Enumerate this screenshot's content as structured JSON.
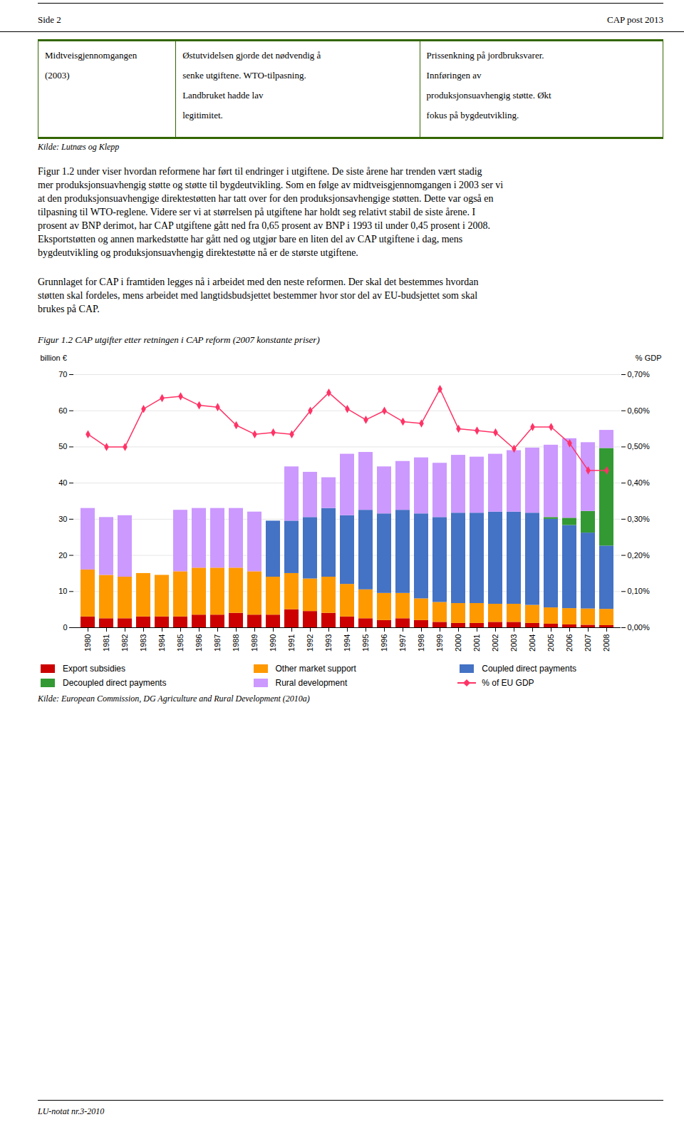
{
  "chart_data": {
    "type": "bar",
    "stacked": true,
    "title": "Figur 1.2 CAP utgifter etter retningen i CAP reform (2007 konstante priser)",
    "ylabel": "billion €",
    "y2label": "% GDP",
    "categories": [
      "1980",
      "1981",
      "1982",
      "1983",
      "1984",
      "1985",
      "1986",
      "1987",
      "1988",
      "1989",
      "1990",
      "1991",
      "1992",
      "1993",
      "1994",
      "1995",
      "1996",
      "1997",
      "1998",
      "1999",
      "2000",
      "2001",
      "2002",
      "2003",
      "2004",
      "2005",
      "2006",
      "2007",
      "2008"
    ],
    "series": [
      {
        "name": "Export subsidies",
        "type": "bar",
        "color": "#CC0000",
        "values": [
          3.0,
          2.5,
          2.5,
          3.0,
          3.0,
          3.0,
          3.5,
          3.5,
          4.0,
          3.5,
          3.5,
          5.0,
          4.5,
          4.0,
          3.0,
          2.5,
          2.0,
          2.5,
          2.0,
          1.5,
          1.2,
          1.2,
          1.5,
          1.5,
          1.2,
          1.0,
          0.8,
          0.7,
          0.6
        ]
      },
      {
        "name": "Other market support",
        "type": "bar",
        "color": "#FF9900",
        "values": [
          13.0,
          12.0,
          11.5,
          12.0,
          11.5,
          12.5,
          13.0,
          13.0,
          12.5,
          12.0,
          10.5,
          10.0,
          9.0,
          10.0,
          9.0,
          8.0,
          7.5,
          7.0,
          6.0,
          5.5,
          5.5,
          5.5,
          5.0,
          5.0,
          5.0,
          4.5,
          4.5,
          4.5,
          4.5
        ]
      },
      {
        "name": "Coupled direct payments",
        "type": "bar",
        "color": "#4472C4",
        "values": [
          0,
          0,
          0,
          0,
          0,
          0,
          0,
          0,
          0,
          0,
          15.5,
          14.5,
          17.0,
          19.0,
          19.0,
          22.0,
          22.0,
          23.0,
          23.5,
          23.5,
          25.0,
          25.0,
          25.5,
          25.5,
          25.5,
          24.5,
          23.0,
          21.0,
          17.5
        ]
      },
      {
        "name": "Decoupled direct payments",
        "type": "bar",
        "color": "#339933",
        "values": [
          0,
          0,
          0,
          0,
          0,
          0,
          0,
          0,
          0,
          0,
          0,
          0,
          0,
          0,
          0,
          0,
          0,
          0,
          0,
          0,
          0,
          0,
          0,
          0,
          0,
          0.5,
          2.0,
          6.0,
          27.0
        ]
      },
      {
        "name": "Rural development",
        "type": "bar",
        "color": "#CC99FF",
        "values": [
          17.0,
          16.0,
          17.0,
          0,
          0,
          17.0,
          16.5,
          16.5,
          16.5,
          16.5,
          0,
          15.0,
          12.5,
          8.5,
          17.0,
          16.0,
          13.0,
          13.5,
          15.5,
          15.0,
          16.0,
          15.5,
          16.0,
          17.0,
          18.0,
          20.0,
          22.0,
          19.0,
          5.0
        ]
      },
      {
        "name": "% of EU GDP",
        "type": "line",
        "axis": "y2",
        "color": "#FF3366",
        "marker": "diamond",
        "values": [
          0.535,
          0.5,
          0.5,
          0.605,
          0.635,
          0.64,
          0.615,
          0.61,
          0.56,
          0.535,
          0.54,
          0.535,
          0.6,
          0.65,
          0.605,
          0.575,
          0.6,
          0.57,
          0.565,
          0.66,
          0.55,
          0.545,
          0.54,
          0.495,
          0.555,
          0.555,
          0.51,
          0.435,
          0.435
        ]
      }
    ],
    "ylim": [
      0,
      70
    ],
    "yticks": [
      0,
      10,
      20,
      30,
      40,
      50,
      60,
      70
    ],
    "y2lim": [
      0.0,
      0.7
    ],
    "y2ticks": [
      {
        "value": 0.0,
        "label": "0,00%"
      },
      {
        "value": 0.1,
        "label": "0,10%"
      },
      {
        "value": 0.2,
        "label": "0,20%"
      },
      {
        "value": 0.3,
        "label": "0,30%"
      },
      {
        "value": 0.4,
        "label": "0,40%"
      },
      {
        "value": 0.5,
        "label": "0,50%"
      },
      {
        "value": 0.6,
        "label": "0,60%"
      },
      {
        "value": 0.7,
        "label": "0,70%"
      }
    ],
    "grid": true,
    "legend": "bottom",
    "annotations": [
      "Kilde: European Commission, DG Agriculture and Rural Development (2010a)"
    ]
  },
  "page": {
    "header": [
      "Side 2",
      "CAP post 2013"
    ],
    "table": [
      [
        "Midtveisgjennomgangen",
        "(2003)"
      ],
      [
        "Østutvidelsen gjorde det nødvendig å",
        "senke utgiftene. WTO-tilpasning.",
        "Landbruket hadde lav",
        "legitimitet."
      ],
      [
        "Prissenkning på jordbruksvarer.",
        "Innføringen av",
        "produksjonsuavhengig støtte. Økt",
        "fokus på bygdeutvikling."
      ]
    ],
    "table_source": "Kilde: Lutnæs og Klepp",
    "body_text_lines": [
      "Figur 1.2 under viser hvordan reformene har ført til endringer i utgiftene. De siste årene har trenden vært stadig",
      "mer produksjonsuavhengig støtte og støtte til bygdeutvikling. Som en følge av midtveisgjennomgangen i 2003 ser vi",
      "at den produksjonsuavhengige direktestøtten har tatt over for den produksjonsavhengige støtten. Dette var også en",
      "tilpasning til WTO-reglene. Videre ser vi at størrelsen på utgiftene har holdt seg relativt stabil de siste årene. I",
      "prosent av BNP derimot, har CAP utgiftene gått ned fra 0,65 prosent av BNP i 1993 til under 0,45 prosent i 2008.",
      "Eksportstøtten og annen markedstøtte har gått ned og utgjør bare en liten del av CAP utgiftene i dag, mens",
      "bygdeutvikling og produksjonsuavhengig direktestøtte nå er de største utgiftene."
    ],
    "grunnlag_lines": [
      "Grunnlaget for CAP i framtiden legges nå i arbeidet med den neste reformen. Der skal det bestemmes hvordan",
      "støtten skal fordeles, mens arbeidet med langtidsbudsjettet bestemmer hvor stor del av EU-budsjettet som skal",
      "brukes på CAP."
    ],
    "footer_text": "LU-notat nr.3-2010"
  }
}
